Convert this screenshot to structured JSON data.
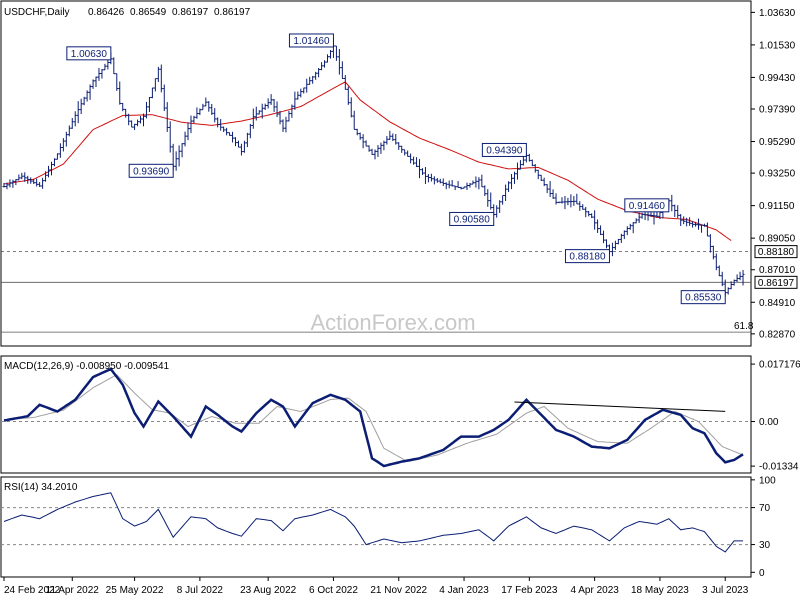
{
  "chart_data": {
    "type": "line",
    "price_panel": {
      "symbol": "USDCHF,Daily",
      "ohlc": [
        "0.86426",
        "0.86549",
        "0.86197",
        "0.86197"
      ],
      "watermark": "ActionForex.com",
      "ylim": [
        0.8215,
        1.043
      ],
      "y_ticks": [
        "1.03630",
        "1.01530",
        "0.99430",
        "0.97390",
        "0.95290",
        "0.93250",
        "0.91150",
        "0.89050",
        "0.87010",
        "0.84910",
        "0.82870"
      ],
      "y_tick_values": [
        1.0363,
        1.0153,
        0.9943,
        0.9739,
        0.9529,
        0.9325,
        0.9115,
        0.8905,
        0.8701,
        0.8491,
        0.8287
      ],
      "hlines": [
        {
          "label": "0.88180",
          "value": 0.8818,
          "style": "dashed"
        },
        {
          "label": "0.86197",
          "value": 0.86197,
          "style": "solid"
        },
        {
          "label": "61.8",
          "value": 0.8298,
          "style": "solid"
        }
      ],
      "annotations": [
        {
          "label": "1.00630",
          "t": 36,
          "value": 1.0063
        },
        {
          "label": "0.93690",
          "t": 57,
          "value": 0.9369
        },
        {
          "label": "1.01460",
          "t": 111,
          "value": 1.0146
        },
        {
          "label": "0.90580",
          "t": 165,
          "value": 0.9058
        },
        {
          "label": "0.94390",
          "t": 176,
          "value": 0.9439
        },
        {
          "label": "0.88180",
          "t": 204,
          "value": 0.8818
        },
        {
          "label": "0.91460",
          "t": 224,
          "value": 0.9146
        },
        {
          "label": "0.85530",
          "t": 243,
          "value": 0.8553
        }
      ],
      "price": [
        [
          0,
          0.9238
        ],
        [
          6,
          0.9305
        ],
        [
          12,
          0.9242
        ],
        [
          18,
          0.9449
        ],
        [
          24,
          0.9698
        ],
        [
          30,
          0.9921
        ],
        [
          36,
          1.0063
        ],
        [
          39,
          0.9775
        ],
        [
          43,
          0.9622
        ],
        [
          47,
          0.9692
        ],
        [
          52,
          0.9996
        ],
        [
          57,
          0.9369
        ],
        [
          63,
          0.9661
        ],
        [
          68,
          0.9783
        ],
        [
          72,
          0.9639
        ],
        [
          77,
          0.9551
        ],
        [
          80,
          0.9464
        ],
        [
          84,
          0.9689
        ],
        [
          90,
          0.9798
        ],
        [
          94,
          0.9615
        ],
        [
          98,
          0.9804
        ],
        [
          103,
          0.9922
        ],
        [
          108,
          1.0042
        ],
        [
          111,
          1.0146
        ],
        [
          115,
          0.9866
        ],
        [
          118,
          0.9607
        ],
        [
          124,
          0.9446
        ],
        [
          130,
          0.9563
        ],
        [
          136,
          0.9433
        ],
        [
          142,
          0.9304
        ],
        [
          148,
          0.9258
        ],
        [
          154,
          0.9227
        ],
        [
          160,
          0.9281
        ],
        [
          165,
          0.9058
        ],
        [
          170,
          0.9262
        ],
        [
          176,
          0.9439
        ],
        [
          181,
          0.9279
        ],
        [
          186,
          0.9136
        ],
        [
          192,
          0.9143
        ],
        [
          198,
          0.9041
        ],
        [
          204,
          0.8818
        ],
        [
          209,
          0.8949
        ],
        [
          215,
          0.9059
        ],
        [
          220,
          0.9046
        ],
        [
          224,
          0.9146
        ],
        [
          228,
          0.9021
        ],
        [
          232,
          0.8994
        ],
        [
          236,
          0.8986
        ],
        [
          240,
          0.8717
        ],
        [
          243,
          0.8553
        ],
        [
          246,
          0.8632
        ],
        [
          249,
          0.8671
        ]
      ],
      "ma": [
        [
          0,
          0.9255
        ],
        [
          10,
          0.9285
        ],
        [
          20,
          0.9383
        ],
        [
          30,
          0.9606
        ],
        [
          40,
          0.9697
        ],
        [
          50,
          0.9702
        ],
        [
          60,
          0.9653
        ],
        [
          70,
          0.9633
        ],
        [
          80,
          0.9661
        ],
        [
          90,
          0.9704
        ],
        [
          100,
          0.9755
        ],
        [
          110,
          0.9862
        ],
        [
          115,
          0.9914
        ],
        [
          120,
          0.9797
        ],
        [
          130,
          0.9656
        ],
        [
          140,
          0.9551
        ],
        [
          150,
          0.9477
        ],
        [
          160,
          0.9396
        ],
        [
          170,
          0.9352
        ],
        [
          180,
          0.9362
        ],
        [
          190,
          0.9279
        ],
        [
          200,
          0.9157
        ],
        [
          210,
          0.9082
        ],
        [
          220,
          0.9039
        ],
        [
          230,
          0.9026
        ],
        [
          240,
          0.8958
        ],
        [
          245,
          0.8889
        ]
      ]
    },
    "macd_panel": {
      "label": "MACD(12,26,9) -0.008950 -0.009541",
      "y_ticks": [
        "0.017176",
        "0.00",
        "-0.01334"
      ],
      "y_tick_values": [
        0.017176,
        0.0,
        -0.01334
      ],
      "ylim": [
        -0.0151,
        0.0193
      ],
      "trendline": [
        [
          172,
          0.00585
        ],
        [
          243,
          0.00305
        ]
      ],
      "macd": [
        [
          0,
          0.0003
        ],
        [
          8,
          0.0016
        ],
        [
          12,
          0.005
        ],
        [
          18,
          0.003
        ],
        [
          24,
          0.0065
        ],
        [
          30,
          0.0133
        ],
        [
          36,
          0.0157
        ],
        [
          40,
          0.011
        ],
        [
          44,
          0.0025
        ],
        [
          47,
          -0.0015
        ],
        [
          52,
          0.006
        ],
        [
          57,
          0.0015
        ],
        [
          63,
          -0.0045
        ],
        [
          68,
          0.0045
        ],
        [
          72,
          0.002
        ],
        [
          77,
          -0.0015
        ],
        [
          80,
          -0.003
        ],
        [
          85,
          0.0025
        ],
        [
          90,
          0.0065
        ],
        [
          94,
          0.0045
        ],
        [
          98,
          -0.0015
        ],
        [
          104,
          0.0055
        ],
        [
          110,
          0.008
        ],
        [
          115,
          0.0065
        ],
        [
          120,
          0.003
        ],
        [
          124,
          -0.011
        ],
        [
          128,
          -0.0133
        ],
        [
          134,
          -0.012
        ],
        [
          140,
          -0.011
        ],
        [
          148,
          -0.0085
        ],
        [
          154,
          -0.0045
        ],
        [
          160,
          -0.0045
        ],
        [
          165,
          -0.0025
        ],
        [
          170,
          0.0005
        ],
        [
          176,
          0.0065
        ],
        [
          181,
          0.002
        ],
        [
          186,
          -0.0025
        ],
        [
          192,
          -0.0045
        ],
        [
          198,
          -0.0075
        ],
        [
          204,
          -0.008
        ],
        [
          210,
          -0.0055
        ],
        [
          216,
          0.0005
        ],
        [
          222,
          0.0035
        ],
        [
          228,
          0.002
        ],
        [
          232,
          -0.002
        ],
        [
          236,
          -0.0035
        ],
        [
          240,
          -0.0095
        ],
        [
          243,
          -0.0122
        ],
        [
          246,
          -0.0115
        ],
        [
          249,
          -0.0098
        ]
      ],
      "signal": [
        [
          0,
          0.0005
        ],
        [
          10,
          0.0012
        ],
        [
          20,
          0.0034
        ],
        [
          30,
          0.0101
        ],
        [
          38,
          0.014
        ],
        [
          44,
          0.0085
        ],
        [
          50,
          0.0035
        ],
        [
          56,
          0.0025
        ],
        [
          62,
          -0.0015
        ],
        [
          70,
          0.0015
        ],
        [
          78,
          -0.0005
        ],
        [
          86,
          -0.0005
        ],
        [
          92,
          0.0045
        ],
        [
          100,
          0.003
        ],
        [
          110,
          0.0066
        ],
        [
          116,
          0.007
        ],
        [
          122,
          0.003
        ],
        [
          128,
          -0.008
        ],
        [
          136,
          -0.012
        ],
        [
          146,
          -0.01
        ],
        [
          156,
          -0.0065
        ],
        [
          166,
          -0.0038
        ],
        [
          176,
          0.0025
        ],
        [
          182,
          0.0045
        ],
        [
          190,
          -0.002
        ],
        [
          200,
          -0.006
        ],
        [
          210,
          -0.0065
        ],
        [
          218,
          -0.002
        ],
        [
          226,
          0.003
        ],
        [
          234,
          0.0
        ],
        [
          242,
          -0.0075
        ],
        [
          249,
          -0.01
        ]
      ]
    },
    "rsi_panel": {
      "label": "RSI(14) 34.2010",
      "y_ticks": [
        "100",
        "70",
        "30",
        "0"
      ],
      "y_tick_values": [
        100,
        70,
        30,
        0
      ],
      "ylim": [
        -4,
        102
      ],
      "levels": [
        70,
        30
      ],
      "rsi": [
        [
          0,
          55
        ],
        [
          6,
          62
        ],
        [
          12,
          58
        ],
        [
          18,
          68
        ],
        [
          24,
          76
        ],
        [
          30,
          82
        ],
        [
          36,
          86
        ],
        [
          40,
          58
        ],
        [
          44,
          50
        ],
        [
          48,
          55
        ],
        [
          52,
          68
        ],
        [
          57,
          38
        ],
        [
          63,
          60
        ],
        [
          68,
          58
        ],
        [
          72,
          48
        ],
        [
          77,
          42
        ],
        [
          80,
          39
        ],
        [
          85,
          58
        ],
        [
          90,
          56
        ],
        [
          94,
          45
        ],
        [
          98,
          58
        ],
        [
          104,
          62
        ],
        [
          110,
          68
        ],
        [
          115,
          60
        ],
        [
          118,
          50
        ],
        [
          122,
          30
        ],
        [
          128,
          36
        ],
        [
          134,
          32
        ],
        [
          140,
          34
        ],
        [
          148,
          40
        ],
        [
          154,
          42
        ],
        [
          160,
          46
        ],
        [
          165,
          34
        ],
        [
          170,
          50
        ],
        [
          176,
          60
        ],
        [
          181,
          48
        ],
        [
          186,
          42
        ],
        [
          192,
          50
        ],
        [
          198,
          46
        ],
        [
          204,
          34
        ],
        [
          209,
          48
        ],
        [
          214,
          55
        ],
        [
          220,
          52
        ],
        [
          224,
          58
        ],
        [
          228,
          46
        ],
        [
          232,
          48
        ],
        [
          236,
          44
        ],
        [
          240,
          28
        ],
        [
          243,
          22
        ],
        [
          246,
          34
        ],
        [
          249,
          34
        ]
      ]
    },
    "x_axis": {
      "range": [
        0,
        250
      ],
      "tick_labels": [
        "24 Feb 2022",
        "11 Apr 2022",
        "25 May 2022",
        "8 Jul 2022",
        "23 Aug 2022",
        "6 Oct 2022",
        "21 Nov 2022",
        "4 Jan 2023",
        "17 Feb 2023",
        "4 Apr 2023",
        "18 May 2023",
        "3 Jul 2023"
      ],
      "tick_positions": [
        0,
        23,
        44,
        66,
        89,
        111,
        133,
        155,
        177,
        199,
        221,
        243
      ]
    }
  }
}
